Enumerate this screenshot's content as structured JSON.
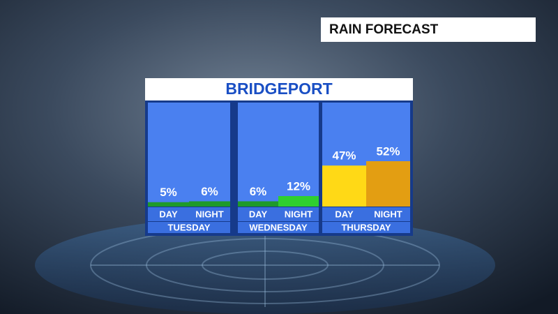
{
  "header": "RAIN FORECAST",
  "chart_data": {
    "type": "bar",
    "title": "BRIDGEPORT",
    "groups": [
      {
        "name": "TUESDAY",
        "categories": [
          "DAY",
          "NIGHT"
        ],
        "values": [
          5,
          6
        ],
        "value_labels": [
          "5%",
          "6%"
        ],
        "colors": [
          "#1e9a2a",
          "#1e9a2a"
        ]
      },
      {
        "name": "WEDNESDAY",
        "categories": [
          "DAY",
          "NIGHT"
        ],
        "values": [
          6,
          12
        ],
        "value_labels": [
          "6%",
          "12%"
        ],
        "colors": [
          "#1e9a2a",
          "#2fcf2f"
        ]
      },
      {
        "name": "THURSDAY",
        "categories": [
          "DAY",
          "NIGHT"
        ],
        "values": [
          47,
          52
        ],
        "value_labels": [
          "47%",
          "52%"
        ],
        "colors": [
          "#ffd916",
          "#e39e12"
        ]
      }
    ]
  }
}
